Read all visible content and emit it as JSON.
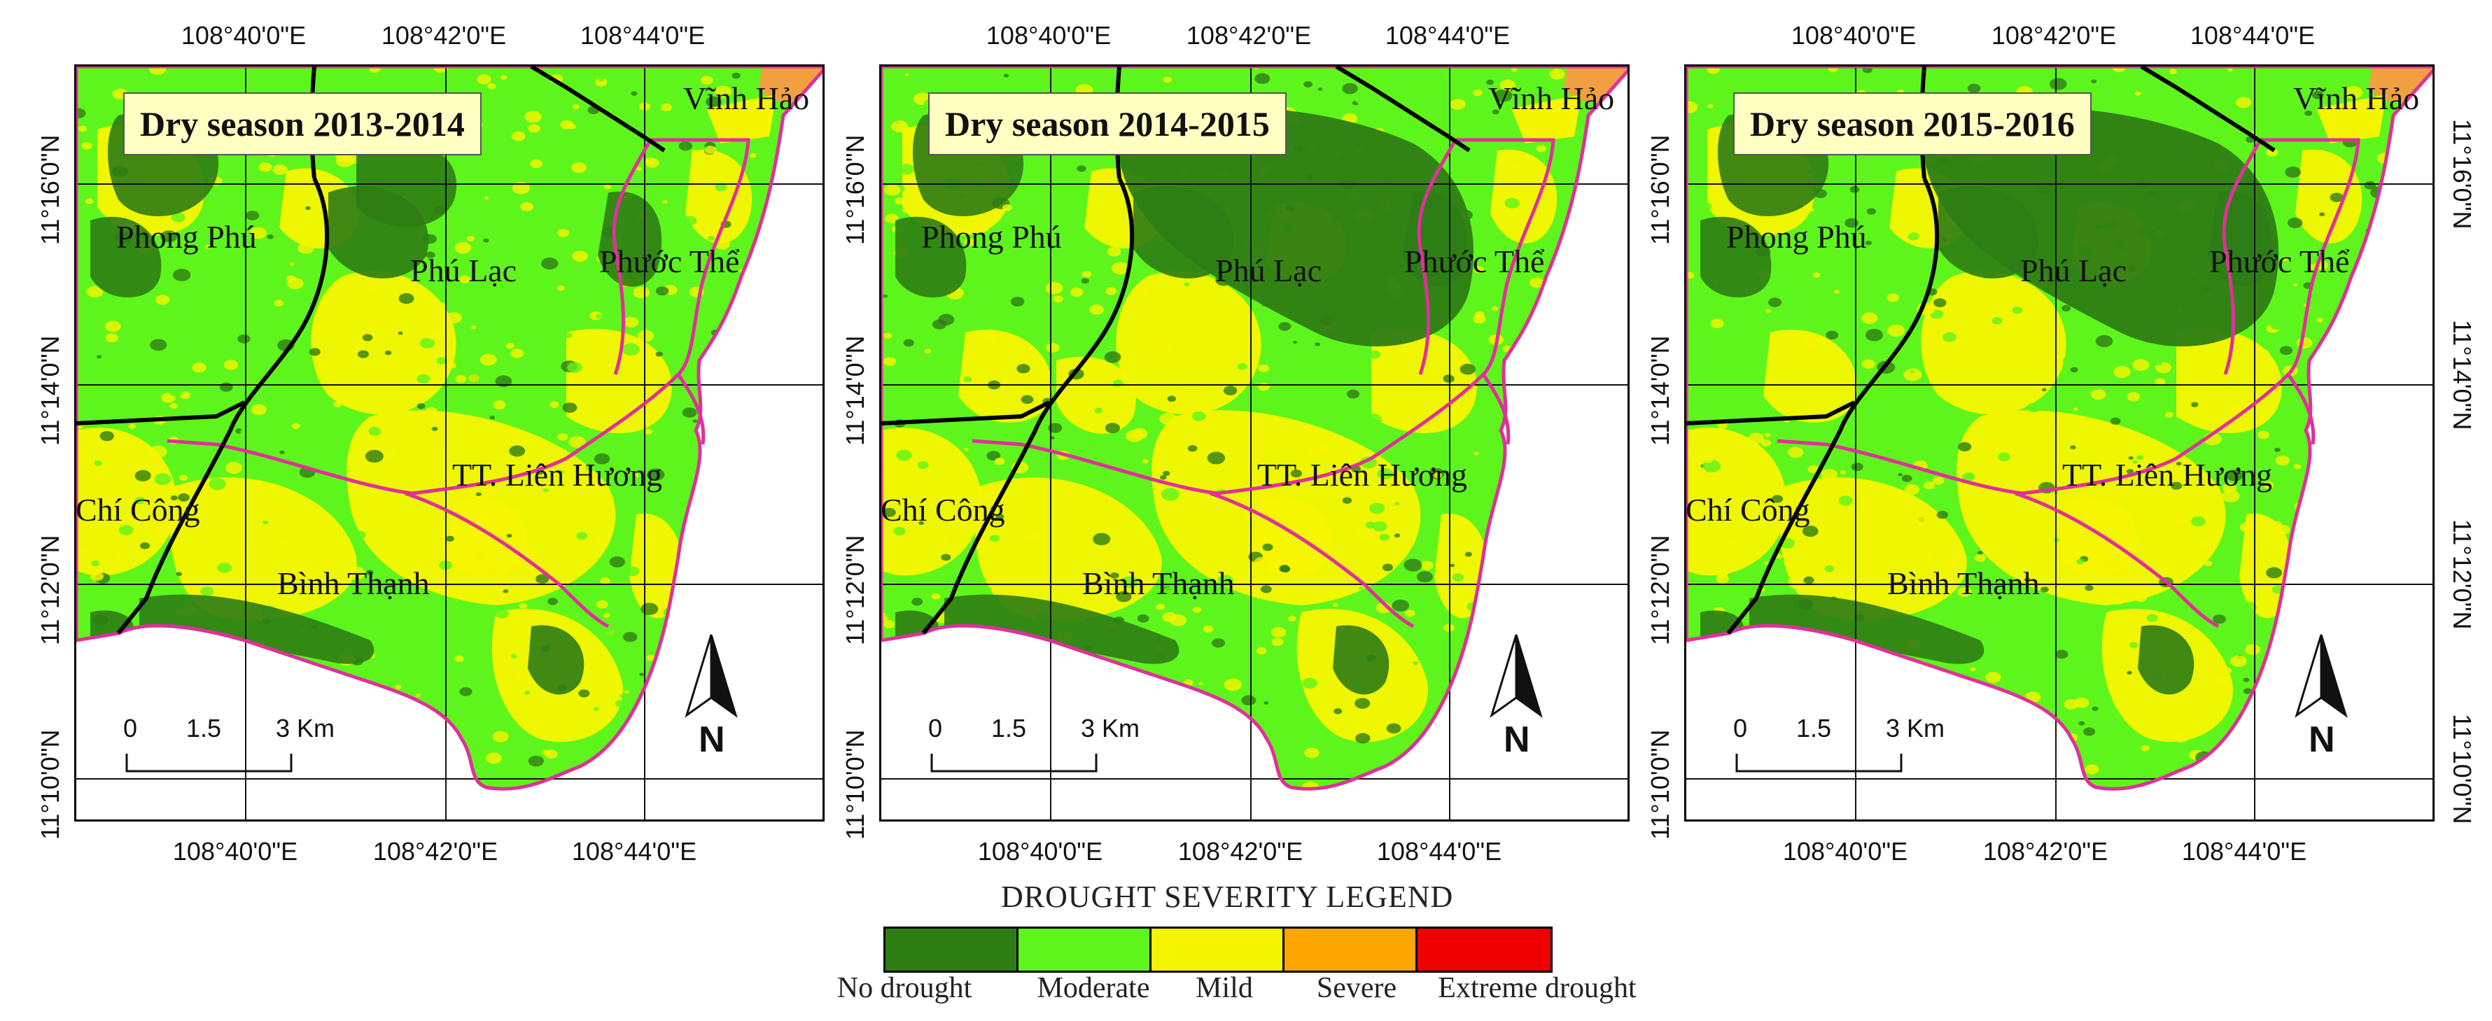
{
  "panels": [
    {
      "title": "Dry season 2013-2014"
    },
    {
      "title": "Dry season 2014-2015"
    },
    {
      "title": "Dry season 2015-2016"
    }
  ],
  "places": {
    "vinh_hao": "Vĩnh Hảo",
    "phong_phu": "Phong Phú",
    "phu_lac": "Phú Lạc",
    "phuoc_the": "Phước Thể",
    "lien_huong": "TT. Liên Hương",
    "chi_cong": "Chí Công",
    "binh_thanh": "Bình Thạnh"
  },
  "longitude_labels": [
    "108°40'0\"E",
    "108°42'0\"E",
    "108°44'0\"E"
  ],
  "latitude_labels": [
    "11°16'0\"N",
    "11°14'0\"N",
    "11°12'0\"N",
    "11°10'0\"N"
  ],
  "scale_bar": {
    "ticks": [
      "0",
      "1.5",
      "3 Km"
    ]
  },
  "north_arrow": {
    "letter": "N",
    "icon": "north-arrow-icon"
  },
  "legend": {
    "title": "DROUGHT SEVERITY LEGEND",
    "classes": [
      {
        "label": "No drought",
        "color": "#2e7d14"
      },
      {
        "label": "Moderate",
        "color": "#5ef51c"
      },
      {
        "label": "Mild",
        "color": "#f5f500"
      },
      {
        "label": "Severe",
        "color": "#ffa500"
      },
      {
        "label": "Extreme drought",
        "color": "#ee0000"
      }
    ]
  },
  "colors": {
    "boundary_admin": "#e0309a",
    "boundary_district": "#000000",
    "sea": "#ffffff",
    "urban": "#f0a040"
  }
}
